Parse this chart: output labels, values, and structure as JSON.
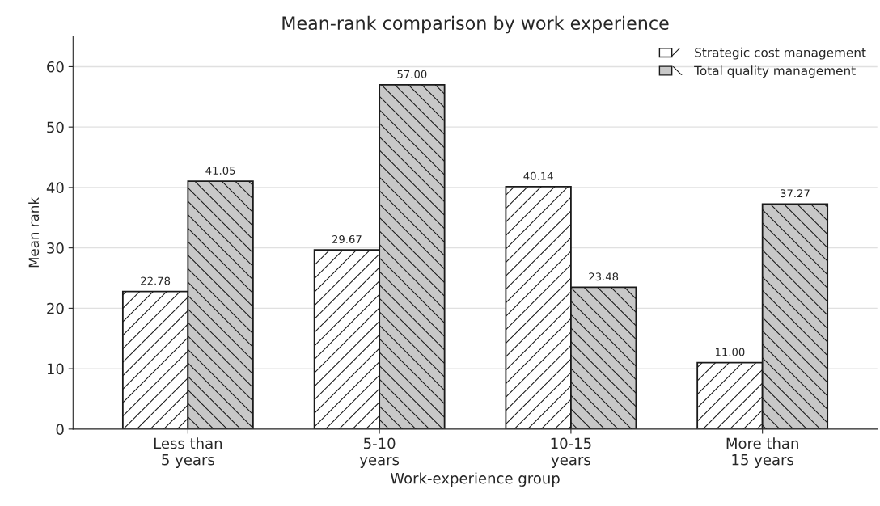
{
  "chart_data": {
    "type": "bar",
    "title": "Mean-rank comparison by work experience",
    "xlabel": "Work-experience group",
    "ylabel": "Mean rank",
    "categories": [
      "Less than\n5 years",
      "5-10\nyears",
      "10-15\nyears",
      "More than\n15 years"
    ],
    "series": [
      {
        "name": "Strategic cost management",
        "color": "#ffffff",
        "values": [
          22.78,
          29.67,
          40.14,
          11.0
        ],
        "value_labels": [
          "22.78",
          "29.67",
          "40.14",
          "11.00"
        ]
      },
      {
        "name": "Total quality management",
        "color": "#c8c8c8",
        "values": [
          41.05,
          57.0,
          23.48,
          37.27
        ],
        "value_labels": [
          "41.05",
          "57.00",
          "23.48",
          "37.27"
        ]
      }
    ],
    "ylim": [
      0,
      65
    ],
    "yticks": [
      0,
      10,
      20,
      30,
      40,
      50,
      60
    ],
    "grid": "y",
    "legend": "top right"
  }
}
